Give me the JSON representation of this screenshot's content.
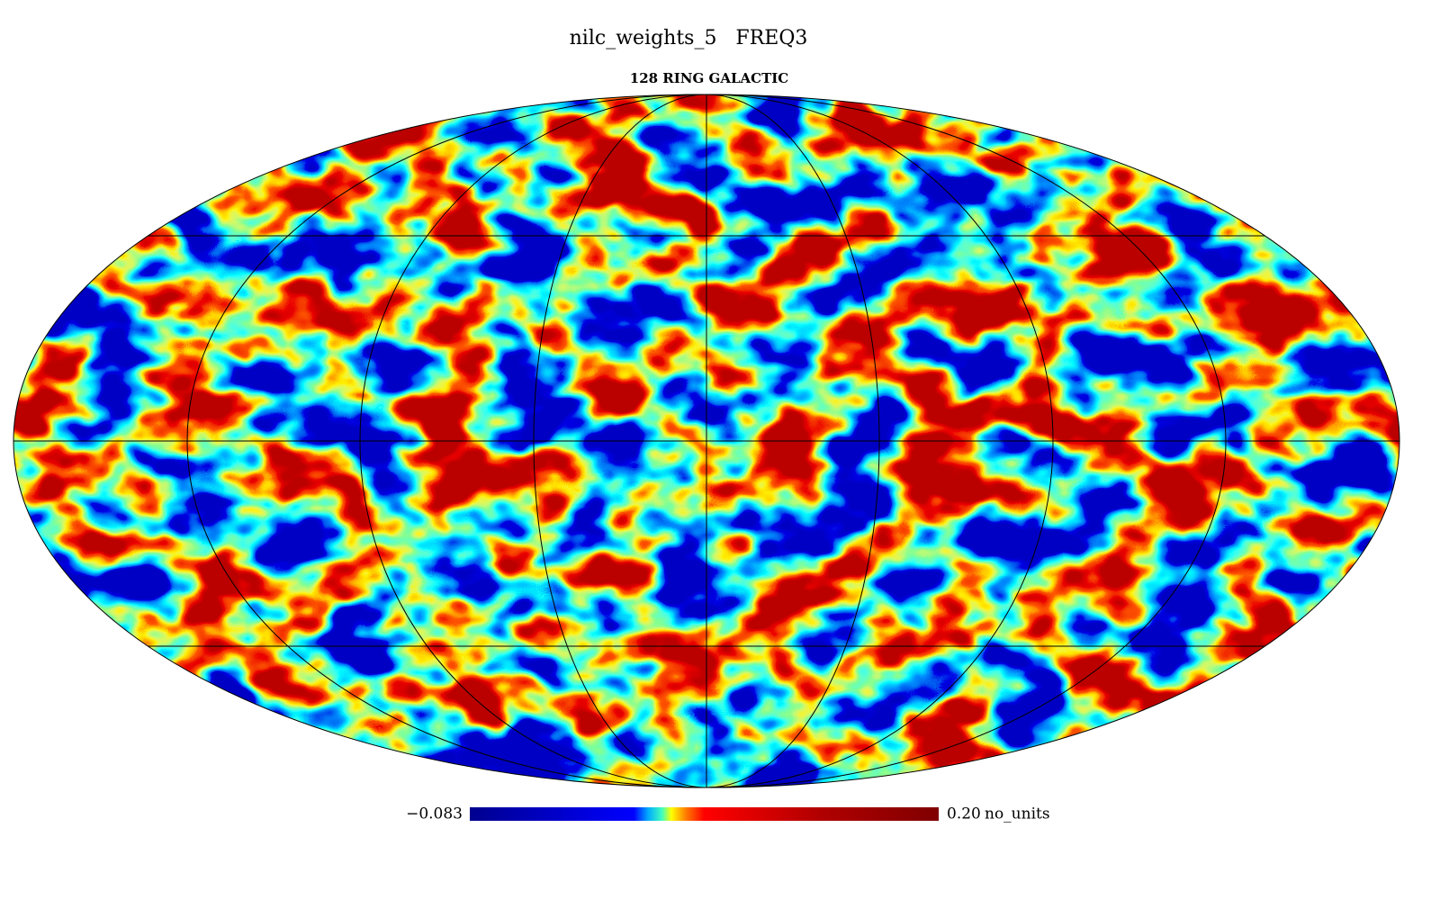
{
  "title": "nilc_weights_5   FREQ3",
  "subtitle": "128 RING GALACTIC",
  "colorbar": {
    "min": {
      "value": -0.083,
      "label": "−0.083"
    },
    "max": {
      "value": 0.2,
      "label": "0.20"
    },
    "units": "no_units"
  }
}
